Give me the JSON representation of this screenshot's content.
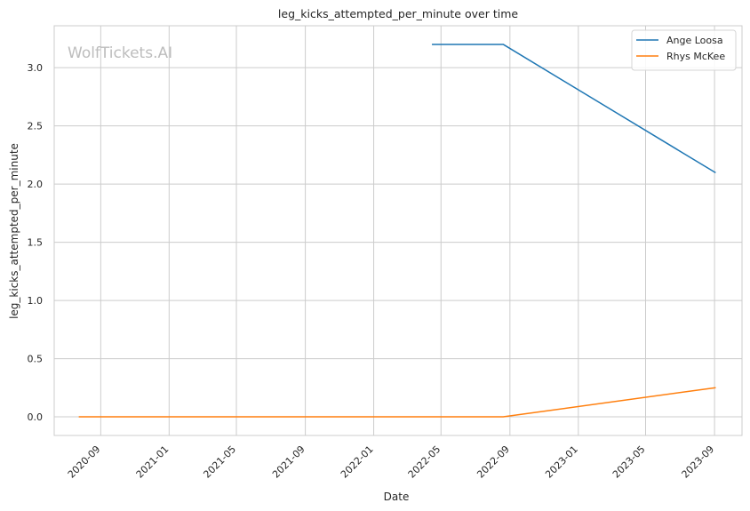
{
  "chart_data": {
    "type": "line",
    "title": "leg_kicks_attempted_per_minute over time",
    "xlabel": "Date",
    "ylabel": "leg_kicks_attempted_per_minute",
    "watermark": "WolfTickets.AI",
    "x_ticks": [
      "2020-09",
      "2021-01",
      "2021-05",
      "2021-09",
      "2022-01",
      "2022-05",
      "2022-09",
      "2023-01",
      "2023-05",
      "2023-09"
    ],
    "y_ticks": [
      "0.0",
      "0.5",
      "1.0",
      "1.5",
      "2.0",
      "2.5",
      "3.0"
    ],
    "xlim": [
      "2020-06-10",
      "2023-10-20"
    ],
    "ylim": [
      -0.16,
      3.36
    ],
    "grid": true,
    "legend_position": "top-right",
    "series": [
      {
        "name": "Ange Loosa",
        "color": "#1f77b4",
        "x": [
          "2022-04-16",
          "2022-08-20",
          "2023-09-02"
        ],
        "y": [
          3.2,
          3.2,
          2.1
        ]
      },
      {
        "name": "Rhys McKee",
        "color": "#ff7f0e",
        "x": [
          "2020-07-25",
          "2022-08-20",
          "2023-09-02"
        ],
        "y": [
          0.0,
          0.0,
          0.25
        ]
      }
    ]
  }
}
